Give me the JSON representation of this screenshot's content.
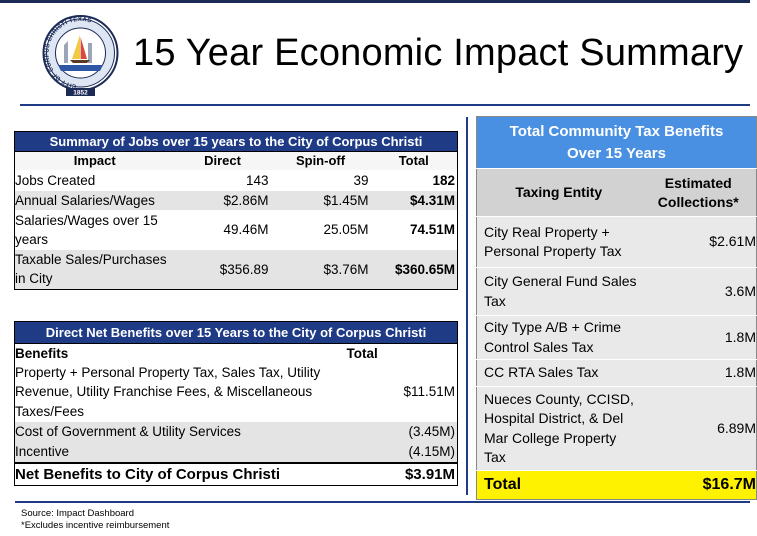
{
  "title": "15 Year Economic Impact Summary",
  "seal": {
    "ring_text": "CITY OF CORPUS CHRISTI TEXAS",
    "year": "1852"
  },
  "jobs_table": {
    "title": "Summary of Jobs over 15 years to the City of Corpus Christi",
    "headers": [
      "Impact",
      "Direct",
      "Spin-off",
      "Total"
    ],
    "rows": [
      {
        "impact": "Jobs Created",
        "direct": "143",
        "spinoff": "39",
        "total": "182"
      },
      {
        "impact": "Annual Salaries/Wages",
        "direct": "$2.86M",
        "spinoff": "$1.45M",
        "total": "$4.31M"
      },
      {
        "impact": "Salaries/Wages over 15 years",
        "direct": "49.46M",
        "spinoff": "25.05M",
        "total": "74.51M"
      },
      {
        "impact": "Taxable Sales/Purchases in City",
        "direct": "$356.89",
        "spinoff": "$3.76M",
        "total": "$360.65M"
      }
    ]
  },
  "net_table": {
    "title": "Direct Net Benefits over 15 Years to the City of Corpus Christi",
    "headers": [
      "Benefits",
      "Total"
    ],
    "rows": [
      {
        "benefit": "Property + Personal Property Tax, Sales Tax, Utility Revenue, Utility Franchise Fees, & Miscellaneous Taxes/Fees",
        "total": "$11.51M"
      },
      {
        "benefit": "Cost of Government & Utility Services",
        "total": "(3.45M)"
      },
      {
        "benefit": "Incentive",
        "total": "(4.15M)"
      }
    ],
    "net_row": {
      "benefit": "Net Benefits to City of Corpus Christi",
      "total": "$3.91M"
    }
  },
  "tax_table": {
    "title": "Total Community Tax Benefits Over 15 Years",
    "headers": [
      "Taxing Entity",
      "Estimated Collections*"
    ],
    "rows": [
      {
        "entity": "City Real Property + Personal Property Tax",
        "value": "$2.61M"
      },
      {
        "entity": "City General Fund Sales Tax",
        "value": "3.6M"
      },
      {
        "entity": "City Type A/B + Crime Control Sales Tax",
        "value": "1.8M"
      },
      {
        "entity": "CC RTA Sales Tax",
        "value": "1.8M"
      },
      {
        "entity": "Nueces County, CCISD, Hospital District, & Del Mar College Property Tax",
        "value": "6.89M"
      }
    ],
    "total": {
      "label": "Total",
      "value": "$16.7M"
    }
  },
  "footnotes": {
    "source": "Source: Impact Dashboard",
    "note": "*Excludes incentive reimbursement"
  },
  "colors": {
    "navy": "#1f3b86",
    "light_blue": "#4a90e2",
    "highlight_yellow": "#fff200",
    "row_gray": "#e4e4e4"
  }
}
